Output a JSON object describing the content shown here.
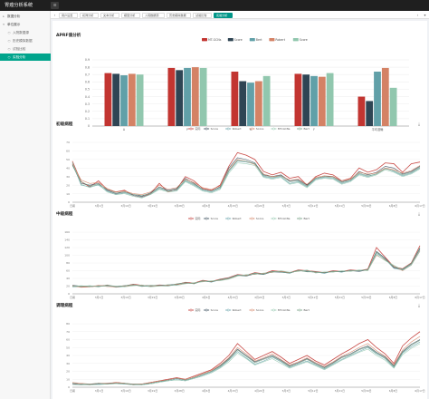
{
  "app": {
    "title": "胃癌分析系统",
    "menu_icon": "menu-icon"
  },
  "sidebar": {
    "items": [
      {
        "label": "数据分析",
        "level": 0,
        "active": false,
        "icon": "triangle-icon"
      },
      {
        "label": "单位展示",
        "level": 0,
        "active": false,
        "icon": "triangle-icon"
      },
      {
        "label": "入院数据源",
        "level": 1,
        "active": false,
        "icon": "circle-icon"
      },
      {
        "label": "历史模拟数据",
        "level": 1,
        "active": false,
        "icon": "circle-icon"
      },
      {
        "label": "试验比较",
        "level": 1,
        "active": false,
        "icon": "circle-icon"
      },
      {
        "label": "实验分析",
        "level": 1,
        "active": true,
        "icon": "circle-icon"
      }
    ]
  },
  "tabs": [
    {
      "label": "用户设置",
      "active": false
    },
    {
      "label": "初筛分析",
      "active": false
    },
    {
      "label": "文本分析",
      "active": false
    },
    {
      "label": "模型分析",
      "active": false
    },
    {
      "label": "入院数据源",
      "active": false
    },
    {
      "label": "历史模拟数据",
      "active": false
    },
    {
      "label": "试验比较",
      "active": false
    },
    {
      "label": "实验分析",
      "active": true
    }
  ],
  "colors": {
    "c1": "#c23531",
    "c2": "#2f4554",
    "c3": "#61a0a8",
    "c4": "#d48265",
    "c5": "#91c7ae",
    "accent": "#009688"
  },
  "chart_data": [
    {
      "type": "bar",
      "title": "APRF值分析",
      "series": [
        {
          "name": "MT-GCNs",
          "values": [
            0.72,
            0.79,
            0.74,
            0.71,
            0.4
          ]
        },
        {
          "name": "Score",
          "values": [
            0.71,
            0.76,
            0.61,
            0.7,
            0.34
          ]
        },
        {
          "name": "Bert",
          "values": [
            0.69,
            0.79,
            0.59,
            0.68,
            0.74
          ]
        },
        {
          "name": "Robert",
          "values": [
            0.71,
            0.8,
            0.61,
            0.67,
            0.79
          ]
        },
        {
          "name": "Score",
          "values": [
            0.7,
            0.79,
            0.68,
            0.72,
            0.52
          ]
        }
      ],
      "categories": [
        "A",
        "P",
        "R",
        "F",
        "平均准确"
      ],
      "yticks": [
        "0.9",
        "0.8",
        "0.7",
        "0.6",
        "0.5",
        "0.4",
        "0.3",
        "0.2",
        "0.1",
        "0"
      ],
      "ylim": [
        0,
        0.9
      ],
      "legend_position": "top-center"
    },
    {
      "type": "line",
      "title": "初级病程",
      "legend": [
        "实际",
        "Score",
        "Robert",
        "Score",
        "MT-GCNs",
        "Bert"
      ],
      "yticks": [
        "70",
        "60",
        "50",
        "40",
        "30",
        "20",
        "10",
        "0"
      ],
      "xticks": [
        "日期",
        "3月1日",
        "3月10日",
        "3月19日",
        "3月28日",
        "4月6日",
        "4月15日",
        "4月24日",
        "5月3日",
        "5月12日",
        "5月21日",
        "5月30日",
        "6月8日",
        "6月17日"
      ],
      "ylim": [
        0,
        70
      ],
      "series": [
        {
          "values": [
            48,
            24,
            18,
            25,
            15,
            12,
            14,
            8,
            6,
            10,
            22,
            12,
            15,
            30,
            25,
            16,
            14,
            20,
            42,
            58,
            55,
            50,
            36,
            32,
            35,
            28,
            30,
            20,
            30,
            34,
            32,
            25,
            28,
            40,
            35,
            38,
            46,
            45,
            35,
            45,
            47
          ]
        },
        {
          "values": [
            44,
            22,
            20,
            22,
            14,
            10,
            12,
            9,
            7,
            11,
            18,
            14,
            16,
            28,
            22,
            15,
            13,
            18,
            40,
            52,
            50,
            46,
            32,
            30,
            32,
            25,
            26,
            20,
            28,
            30,
            30,
            24,
            26,
            36,
            32,
            35,
            42,
            40,
            33,
            36,
            42
          ]
        },
        {
          "values": [
            46,
            20,
            18,
            20,
            13,
            9,
            11,
            8,
            6,
            9,
            16,
            13,
            14,
            25,
            20,
            14,
            12,
            16,
            36,
            48,
            47,
            45,
            30,
            28,
            30,
            22,
            24,
            18,
            27,
            29,
            28,
            22,
            25,
            33,
            30,
            33,
            40,
            36,
            31,
            34,
            40
          ]
        },
        {
          "values": [
            45,
            26,
            22,
            23,
            16,
            12,
            13,
            10,
            9,
            12,
            20,
            15,
            17,
            27,
            23,
            17,
            15,
            19,
            38,
            50,
            48,
            44,
            33,
            30,
            31,
            26,
            27,
            21,
            29,
            31,
            30,
            25,
            27,
            35,
            33,
            34,
            40,
            38,
            34,
            37,
            43
          ]
        },
        {
          "values": [
            47,
            21,
            17,
            21,
            12,
            9,
            10,
            7,
            5,
            9,
            15,
            12,
            13,
            24,
            19,
            13,
            11,
            15,
            34,
            46,
            45,
            43,
            29,
            27,
            29,
            21,
            23,
            17,
            26,
            28,
            27,
            21,
            24,
            32,
            29,
            32,
            38,
            35,
            30,
            33,
            39
          ]
        },
        {
          "values": [
            43,
            24,
            19,
            21,
            15,
            11,
            12,
            9,
            8,
            10,
            17,
            13,
            15,
            26,
            21,
            15,
            13,
            17,
            37,
            49,
            48,
            45,
            31,
            29,
            31,
            24,
            25,
            19,
            28,
            30,
            29,
            23,
            26,
            34,
            31,
            33,
            39,
            37,
            32,
            35,
            41
          ]
        }
      ]
    },
    {
      "type": "line",
      "title": "中级病程",
      "legend": [
        "实际",
        "Score",
        "Robert",
        "Score",
        "MT-GCNs",
        "Bert"
      ],
      "yticks": [
        "160",
        "140",
        "120",
        "100",
        "80",
        "60",
        "40",
        "20",
        "0"
      ],
      "xticks": [
        "日期",
        "3月1日",
        "3月10日",
        "3月19日",
        "3月28日",
        "4月6日",
        "4月15日",
        "4月24日",
        "5月3日",
        "5月12日",
        "5月21日",
        "5月30日",
        "6月8日",
        "6月17日"
      ],
      "ylim": [
        0,
        160
      ],
      "series": [
        {
          "values": [
            20,
            18,
            19,
            20,
            22,
            18,
            20,
            25,
            22,
            20,
            23,
            22,
            24,
            30,
            28,
            35,
            32,
            38,
            42,
            50,
            48,
            55,
            52,
            60,
            58,
            55,
            62,
            60,
            58,
            55,
            60,
            58,
            62,
            60,
            64,
            120,
            95,
            70,
            65,
            80,
            125
          ]
        },
        {
          "values": [
            22,
            20,
            18,
            21,
            20,
            19,
            21,
            23,
            21,
            21,
            22,
            23,
            25,
            28,
            27,
            33,
            31,
            36,
            40,
            48,
            46,
            52,
            50,
            57,
            56,
            54,
            60,
            58,
            56,
            54,
            58,
            57,
            60,
            58,
            62,
            110,
            92,
            68,
            63,
            78,
            118
          ]
        },
        {
          "values": [
            18,
            19,
            20,
            19,
            21,
            17,
            19,
            24,
            20,
            19,
            22,
            21,
            23,
            29,
            26,
            34,
            30,
            37,
            41,
            49,
            47,
            53,
            51,
            58,
            57,
            53,
            61,
            59,
            57,
            53,
            59,
            56,
            61,
            59,
            63,
            105,
            90,
            66,
            62,
            77,
            115
          ]
        },
        {
          "values": [
            21,
            17,
            18,
            22,
            19,
            18,
            20,
            22,
            22,
            20,
            21,
            22,
            24,
            27,
            28,
            32,
            33,
            35,
            39,
            47,
            49,
            51,
            53,
            56,
            59,
            55,
            59,
            61,
            55,
            56,
            57,
            59,
            59,
            61,
            61,
            100,
            88,
            72,
            60,
            75,
            112
          ]
        },
        {
          "values": [
            19,
            21,
            19,
            20,
            20,
            20,
            18,
            21,
            23,
            18,
            20,
            24,
            22,
            26,
            29,
            31,
            34,
            34,
            38,
            46,
            50,
            50,
            54,
            55,
            60,
            56,
            58,
            62,
            54,
            57,
            56,
            60,
            58,
            62,
            60,
            102,
            86,
            74,
            61,
            74,
            110
          ]
        },
        {
          "values": [
            20,
            19,
            21,
            18,
            23,
            19,
            21,
            24,
            19,
            22,
            21,
            20,
            26,
            29,
            26,
            34,
            31,
            37,
            40,
            48,
            47,
            54,
            51,
            58,
            57,
            54,
            61,
            57,
            57,
            55,
            58,
            58,
            60,
            60,
            63,
            108,
            89,
            70,
            64,
            79,
            120
          ]
        }
      ]
    },
    {
      "type": "line",
      "title": "调理病程",
      "legend": [
        "实际",
        "Score",
        "Robert",
        "Score",
        "MT-GCNs",
        "Bert"
      ],
      "yticks": [
        "80",
        "70",
        "60",
        "50",
        "40",
        "30",
        "20",
        "10",
        "0"
      ],
      "xticks": [
        "日期",
        "3月1日",
        "3月10日",
        "3月19日",
        "3月28日",
        "4月6日",
        "4月15日",
        "4月24日",
        "5月3日",
        "5月12日",
        "5月21日",
        "5月30日",
        "6月8日",
        "6月17日"
      ],
      "ylim": [
        0,
        80
      ],
      "series": [
        {
          "values": [
            5,
            4,
            3,
            5,
            4,
            6,
            5,
            3,
            4,
            6,
            8,
            10,
            12,
            10,
            14,
            18,
            22,
            30,
            40,
            55,
            45,
            35,
            40,
            45,
            38,
            30,
            35,
            40,
            33,
            28,
            35,
            42,
            48,
            55,
            60,
            50,
            42,
            30,
            52,
            62,
            70
          ]
        },
        {
          "values": [
            4,
            3,
            4,
            4,
            5,
            5,
            4,
            4,
            3,
            5,
            7,
            9,
            11,
            9,
            12,
            16,
            20,
            27,
            36,
            48,
            40,
            32,
            36,
            40,
            34,
            27,
            31,
            36,
            30,
            25,
            31,
            38,
            42,
            48,
            52,
            44,
            38,
            27,
            45,
            54,
            60
          ]
        },
        {
          "values": [
            5,
            4,
            3,
            4,
            4,
            5,
            4,
            3,
            3,
            5,
            7,
            8,
            10,
            8,
            11,
            15,
            19,
            25,
            34,
            45,
            37,
            29,
            33,
            38,
            32,
            25,
            29,
            33,
            28,
            23,
            29,
            35,
            40,
            45,
            50,
            42,
            36,
            25,
            43,
            51,
            57
          ]
        },
        {
          "values": [
            6,
            5,
            4,
            5,
            5,
            6,
            5,
            4,
            4,
            6,
            8,
            9,
            11,
            10,
            13,
            17,
            21,
            28,
            37,
            50,
            42,
            33,
            37,
            42,
            35,
            28,
            32,
            37,
            31,
            26,
            32,
            39,
            44,
            50,
            55,
            46,
            39,
            28,
            47,
            57,
            64
          ]
        },
        {
          "values": [
            3,
            3,
            3,
            3,
            4,
            4,
            4,
            3,
            3,
            4,
            6,
            8,
            9,
            8,
            11,
            14,
            18,
            24,
            32,
            43,
            36,
            28,
            32,
            36,
            30,
            24,
            28,
            32,
            27,
            22,
            28,
            34,
            39,
            44,
            48,
            40,
            34,
            24,
            41,
            49,
            55
          ]
        },
        {
          "values": [
            5,
            4,
            4,
            5,
            4,
            5,
            5,
            4,
            4,
            5,
            7,
            9,
            11,
            9,
            12,
            16,
            20,
            26,
            35,
            47,
            39,
            31,
            35,
            39,
            33,
            26,
            30,
            35,
            29,
            24,
            30,
            37,
            41,
            47,
            51,
            43,
            37,
            26,
            44,
            53,
            59
          ]
        }
      ]
    }
  ]
}
